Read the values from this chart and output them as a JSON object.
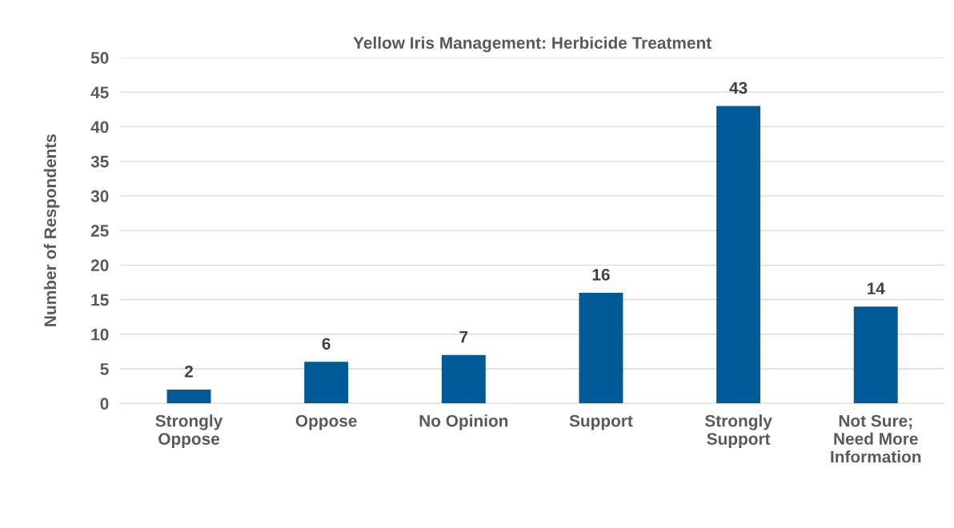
{
  "chart_data": {
    "type": "bar",
    "title": "Yellow Iris Management: Herbicide Treatment",
    "ylabel": "Number of Respondents",
    "categories": [
      "Strongly\nOppose",
      "Oppose",
      "No Opinion",
      "Support",
      "Strongly\nSupport",
      "Not Sure;\nNeed More\nInformation"
    ],
    "values": [
      2,
      6,
      7,
      16,
      43,
      14
    ],
    "color": "#005a96",
    "ylim": [
      0,
      50
    ],
    "yticks": [
      0,
      5,
      10,
      15,
      20,
      25,
      30,
      35,
      40,
      45,
      50
    ],
    "grid": "y",
    "data_labels": true
  }
}
